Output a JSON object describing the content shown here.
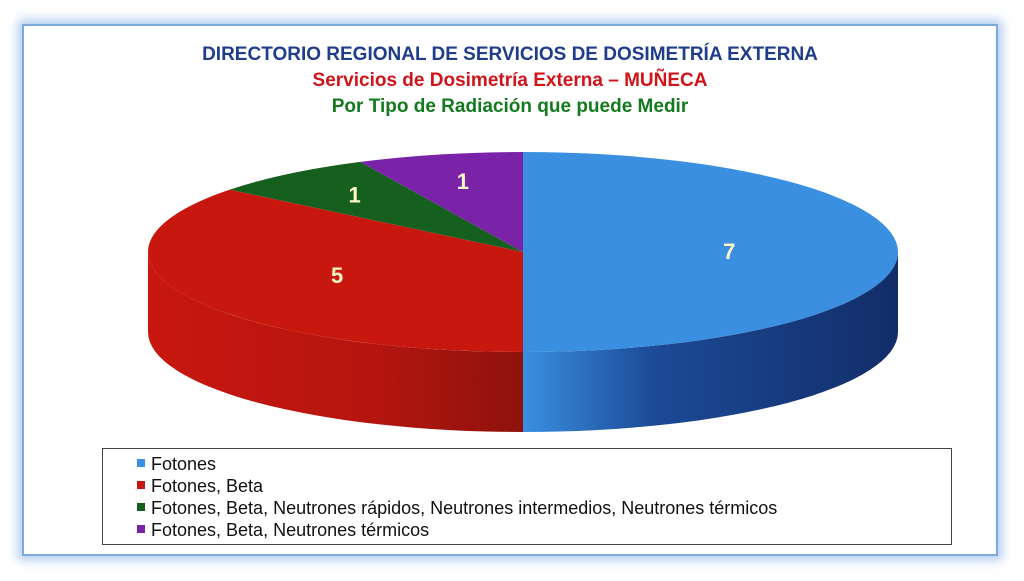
{
  "title_line1": "DIRECTORIO REGIONAL DE SERVICIOS DE DOSIMETRÍA EXTERNA",
  "title_line2": "Servicios de Dosimetría Externa – MUÑECA",
  "title_line3": "Por Tipo de Radiación que puede Medir",
  "chart_data": {
    "type": "pie",
    "style": "3d",
    "title": "DIRECTORIO REGIONAL DE SERVICIOS DE DOSIMETRÍA EXTERNA",
    "subtitle": "Servicios de Dosimetría Externa – MUÑECA / Por Tipo de Radiación que puede Medir",
    "categories": [
      "Fotones",
      "Fotones, Beta",
      "Fotones, Beta, Neutrones rápidos, Neutrones intermedios, Neutrones térmicos",
      "Fotones, Beta, Neutrones térmicos"
    ],
    "values": [
      7,
      5,
      1,
      1
    ],
    "labels": [
      "7",
      "5",
      "1",
      "1"
    ],
    "colors": [
      "#3a8fe0",
      "#c8170f",
      "#16601f",
      "#7a22a8"
    ],
    "side_colors": [
      "#14336f",
      "#a01410",
      "#0e4416",
      "#561780"
    ],
    "legend_position": "bottom"
  }
}
